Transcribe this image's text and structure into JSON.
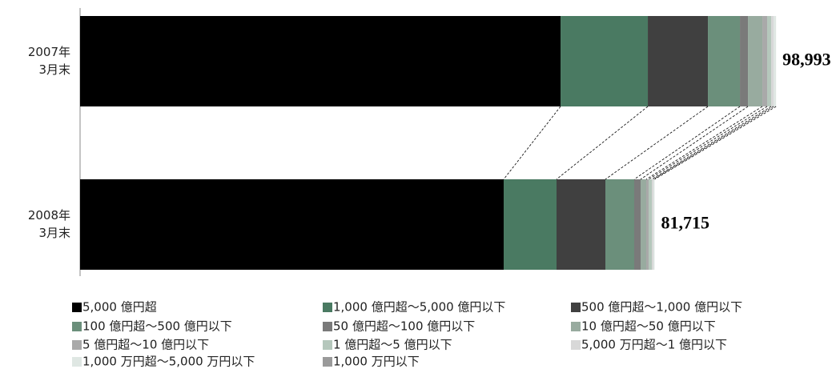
{
  "chart_data": {
    "type": "stacked-barh",
    "categories": [
      [
        "2007年",
        "3月末"
      ],
      [
        "2008年",
        "3月末"
      ]
    ],
    "xlim": [
      0,
      100000
    ],
    "series": [
      {
        "name": "5,000 億円超",
        "color": "#000000",
        "values": [
          68340,
          60250
        ]
      },
      {
        "name": "1,000 億円超〜5,000 億円以下",
        "color": "#4a7a62",
        "values": [
          12415,
          7517
        ]
      },
      {
        "name": "500 億円超〜1,000 億円以下",
        "color": "#404040",
        "values": [
          8543,
          6948
        ]
      },
      {
        "name": "100 億円超〜500 億円以下",
        "color": "#6b8f7b",
        "values": [
          4556,
          4100
        ]
      },
      {
        "name": "50 億円超〜100 億円以下",
        "color": "#7a7a7a",
        "values": [
          1139,
          911
        ]
      },
      {
        "name": "10 億円超〜50 億円以下",
        "color": "#98ab9f",
        "values": [
          2050,
          797
        ]
      },
      {
        "name": "5 億円超〜10 億円以下",
        "color": "#a9a9a9",
        "values": [
          683,
          342
        ]
      },
      {
        "name": "1 億円超〜5 億円以下",
        "color": "#b5c7bc",
        "values": [
          570,
          456
        ]
      },
      {
        "name": "5,000 万円超〜1 億円以下",
        "color": "#d8d8d8",
        "values": [
          342,
          228
        ]
      },
      {
        "name": "1,000 万円超〜5,000 万円以下",
        "color": "#dfe7e3",
        "values": [
          355,
          166
        ]
      },
      {
        "name": "1,000 万円以下",
        "color": "#9a9a9a",
        "values": [
          0,
          0
        ]
      }
    ],
    "totals": [
      {
        "value": 98993,
        "label": "98,993"
      },
      {
        "value": 81715,
        "label": "81,715"
      }
    ]
  }
}
